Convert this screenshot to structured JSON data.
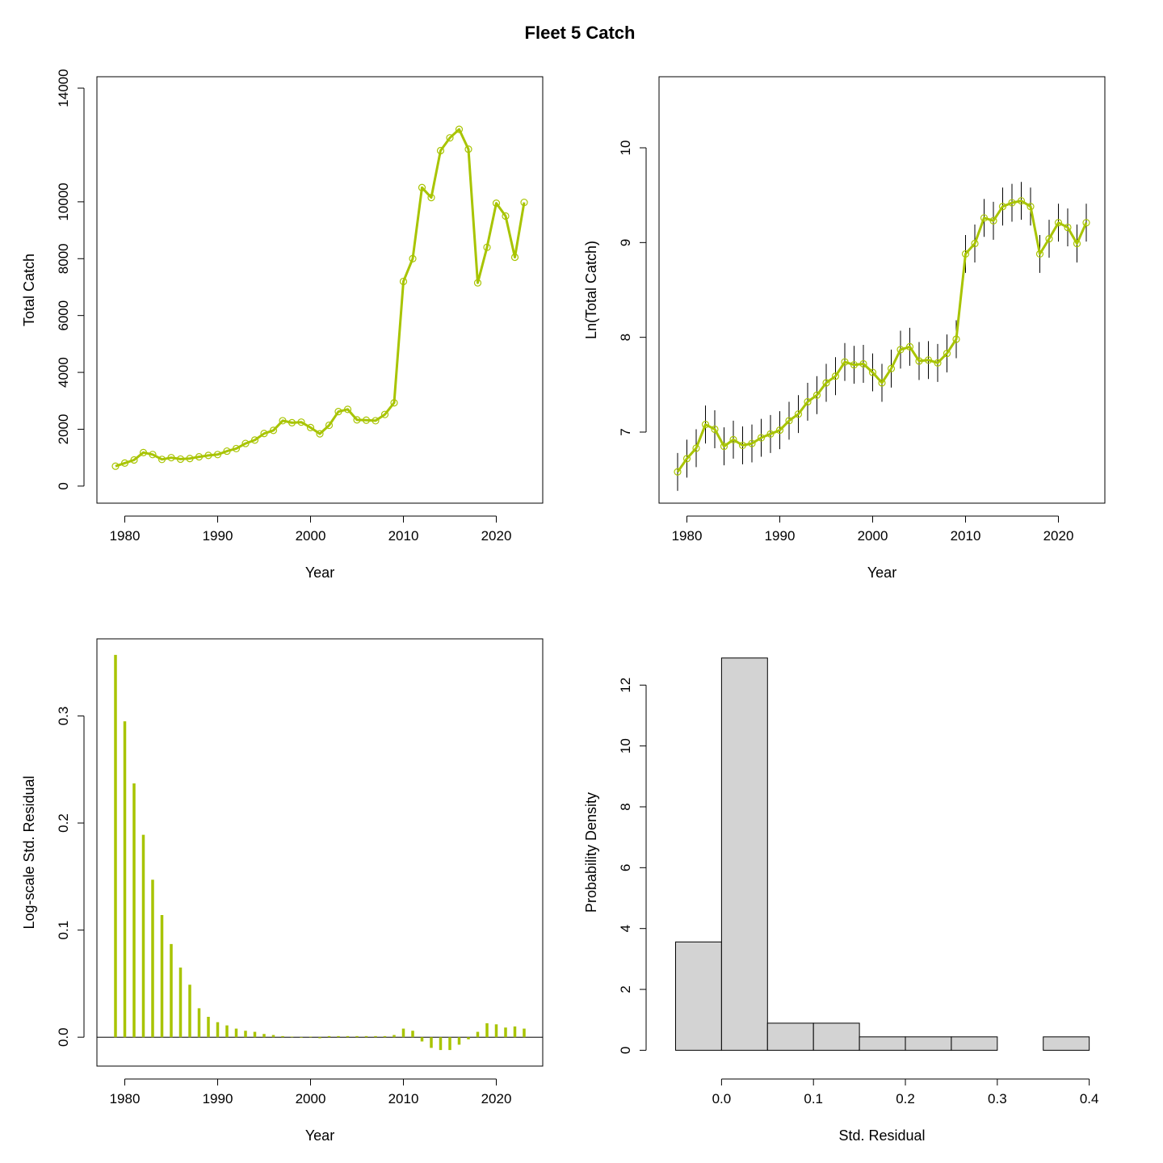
{
  "figure": {
    "title": "Fleet 5 Catch"
  },
  "chart_data": [
    {
      "type": "line",
      "xlabel": "Year",
      "ylabel": "Total Catch",
      "xlim": [
        1977,
        2025
      ],
      "ylim": [
        -600,
        14400
      ],
      "xticks": [
        1980,
        1990,
        2000,
        2010,
        2020
      ],
      "yticks": [
        0,
        2000,
        4000,
        6000,
        8000,
        10000,
        14000
      ],
      "color": "#a8c400",
      "x": [
        1979,
        1980,
        1981,
        1982,
        1983,
        1984,
        1985,
        1986,
        1987,
        1988,
        1989,
        1990,
        1991,
        1992,
        1993,
        1994,
        1995,
        1996,
        1997,
        1998,
        1999,
        2000,
        2001,
        2002,
        2003,
        2004,
        2005,
        2006,
        2007,
        2008,
        2009,
        2010,
        2011,
        2012,
        2013,
        2014,
        2015,
        2016,
        2017,
        2018,
        2019,
        2020,
        2021,
        2022,
        2023
      ],
      "y": [
        700,
        810,
        920,
        1180,
        1110,
        940,
        1000,
        950,
        970,
        1030,
        1080,
        1110,
        1230,
        1320,
        1500,
        1620,
        1850,
        1960,
        2300,
        2230,
        2250,
        2060,
        1840,
        2140,
        2620,
        2700,
        2330,
        2320,
        2300,
        2520,
        2930,
        7200,
        8000,
        10500,
        10150,
        11800,
        12250,
        12550,
        11850,
        7150,
        8400,
        9950,
        9500,
        8050,
        9980
      ]
    },
    {
      "type": "line",
      "xlabel": "Year",
      "ylabel": "Ln(Total Catch)",
      "xlim": [
        1977,
        2025
      ],
      "ylim": [
        6.25,
        10.75
      ],
      "xticks": [
        1980,
        1990,
        2000,
        2010,
        2020
      ],
      "yticks": [
        7,
        8,
        9,
        10
      ],
      "color": "#a8c400",
      "error_half_width": 0.2,
      "x": [
        1979,
        1980,
        1981,
        1982,
        1983,
        1984,
        1985,
        1986,
        1987,
        1988,
        1989,
        1990,
        1991,
        1992,
        1993,
        1994,
        1995,
        1996,
        1997,
        1998,
        1999,
        2000,
        2001,
        2002,
        2003,
        2004,
        2005,
        2006,
        2007,
        2008,
        2009,
        2010,
        2011,
        2012,
        2013,
        2014,
        2015,
        2016,
        2017,
        2018,
        2019,
        2020,
        2021,
        2022,
        2023
      ],
      "y": [
        6.58,
        6.72,
        6.83,
        7.08,
        7.03,
        6.85,
        6.92,
        6.86,
        6.88,
        6.94,
        6.98,
        7.02,
        7.12,
        7.19,
        7.32,
        7.39,
        7.52,
        7.59,
        7.74,
        7.71,
        7.72,
        7.63,
        7.52,
        7.67,
        7.87,
        7.9,
        7.75,
        7.76,
        7.73,
        7.83,
        7.98,
        8.88,
        8.99,
        9.26,
        9.23,
        9.38,
        9.42,
        9.44,
        9.38,
        8.88,
        9.04,
        9.21,
        9.16,
        8.99,
        9.21
      ]
    },
    {
      "type": "bar",
      "xlabel": "Year",
      "ylabel": "Log-scale Std. Residual",
      "xlim": [
        1977,
        2025
      ],
      "ylim": [
        -0.027,
        0.372
      ],
      "xticks": [
        1980,
        1990,
        2000,
        2010,
        2020
      ],
      "yticks": [
        0.0,
        0.1,
        0.2,
        0.3
      ],
      "color": "#a8c400",
      "x": [
        1979,
        1980,
        1981,
        1982,
        1983,
        1984,
        1985,
        1986,
        1987,
        1988,
        1989,
        1990,
        1991,
        1992,
        1993,
        1994,
        1995,
        1996,
        1997,
        1998,
        1999,
        2000,
        2001,
        2002,
        2003,
        2004,
        2005,
        2006,
        2007,
        2008,
        2009,
        2010,
        2011,
        2012,
        2013,
        2014,
        2015,
        2016,
        2017,
        2018,
        2019,
        2020,
        2021,
        2022,
        2023
      ],
      "y": [
        0.357,
        0.295,
        0.237,
        0.189,
        0.147,
        0.114,
        0.087,
        0.065,
        0.049,
        0.027,
        0.019,
        0.014,
        0.011,
        0.008,
        0.006,
        0.005,
        0.003,
        0.002,
        0.001,
        0.0005,
        -0.0005,
        0.0005,
        -0.001,
        0.001,
        0.001,
        0.001,
        0.001,
        0.001,
        0.001,
        0.001,
        0.002,
        0.008,
        0.006,
        -0.004,
        -0.01,
        -0.012,
        -0.012,
        -0.007,
        -0.002,
        0.005,
        0.013,
        0.012,
        0.009,
        0.01,
        0.008
      ]
    },
    {
      "type": "histogram",
      "xlabel": "Std. Residual",
      "ylabel": "Probability Density",
      "xlim": [
        -0.068,
        0.417
      ],
      "ylim": [
        -0.52,
        13.52
      ],
      "xticks": [
        0.0,
        0.1,
        0.2,
        0.3,
        0.4
      ],
      "yticks": [
        0,
        2,
        4,
        6,
        8,
        10,
        12
      ],
      "color": "#d3d3d3",
      "bin_edges": [
        -0.05,
        0.0,
        0.05,
        0.1,
        0.15,
        0.2,
        0.25,
        0.3,
        0.35,
        0.4
      ],
      "density": [
        3.56,
        12.89,
        0.89,
        0.89,
        0.44,
        0.44,
        0.44,
        0.0,
        0.44
      ]
    }
  ]
}
